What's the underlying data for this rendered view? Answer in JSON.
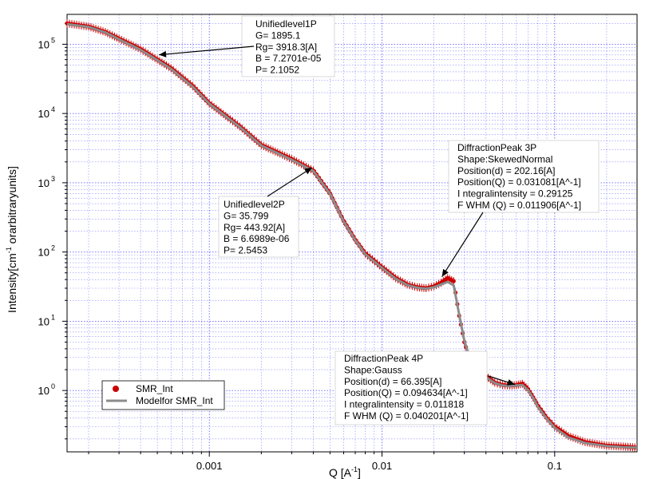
{
  "chart_data": {
    "type": "scatter",
    "xlabel": "Q [A",
    "xlabel_sup": "-1",
    "xlabel_end": "]",
    "ylabel": "Intensity[cm",
    "ylabel_sup": "-1",
    "ylabel_end": " orarbitraryunits]",
    "x_scale": "log",
    "y_scale": "log",
    "xlim": [
      0.00015,
      0.3
    ],
    "ylim": [
      0.13,
      270000
    ],
    "grid": true,
    "x_ticks": [
      {
        "value": 0.001,
        "label": "0.001"
      },
      {
        "value": 0.01,
        "label": "0.01"
      },
      {
        "value": 0.1,
        "label": "0.1"
      }
    ],
    "y_ticks": [
      {
        "value": 1,
        "base": "10",
        "exp": "0"
      },
      {
        "value": 10,
        "base": "10",
        "exp": "1"
      },
      {
        "value": 100,
        "base": "10",
        "exp": "2"
      },
      {
        "value": 1000,
        "base": "10",
        "exp": "3"
      },
      {
        "value": 10000,
        "base": "10",
        "exp": "4"
      },
      {
        "value": 100000,
        "base": "10",
        "exp": "5"
      }
    ],
    "legend": {
      "placement": "bottom-left",
      "entries": [
        "SMR_Int",
        "Modelfor SMR_Int"
      ]
    },
    "colors": {
      "data": "#cc0000",
      "model": "#8c8c8c",
      "grid": "#5555ff"
    },
    "series": [
      {
        "name": "SMR_Int",
        "x": [
          0.00015,
          0.0002,
          0.00025,
          0.0003,
          0.0004,
          0.0005,
          0.0006,
          0.0008,
          0.001,
          0.0015,
          0.002,
          0.003,
          0.004,
          0.005,
          0.006,
          0.007,
          0.008,
          0.01,
          0.012,
          0.014,
          0.016,
          0.018,
          0.02,
          0.022,
          0.024,
          0.026,
          0.028,
          0.03,
          0.032,
          0.035,
          0.04,
          0.045,
          0.05,
          0.055,
          0.06,
          0.065,
          0.07,
          0.075,
          0.08,
          0.09,
          0.1,
          0.12,
          0.15,
          0.2,
          0.25,
          0.3
        ],
        "y": [
          200000,
          180000,
          150000,
          120000,
          85000,
          60000,
          45000,
          25000,
          14000,
          6500,
          3500,
          2200,
          1500,
          700,
          280,
          150,
          95,
          60,
          42,
          34,
          31,
          30,
          32,
          36,
          42,
          38,
          12,
          5,
          3,
          2.3,
          1.6,
          1.3,
          1.2,
          1.18,
          1.2,
          1.25,
          1.05,
          0.8,
          0.6,
          0.4,
          0.3,
          0.22,
          0.18,
          0.16,
          0.155,
          0.15
        ]
      },
      {
        "name": "Modelfor SMR_Int",
        "x": [
          0.00015,
          0.0002,
          0.00025,
          0.0003,
          0.0004,
          0.0005,
          0.0006,
          0.0008,
          0.001,
          0.0015,
          0.002,
          0.003,
          0.004,
          0.005,
          0.006,
          0.007,
          0.008,
          0.01,
          0.012,
          0.014,
          0.016,
          0.018,
          0.02,
          0.022,
          0.024,
          0.026,
          0.028,
          0.03,
          0.032,
          0.035,
          0.04,
          0.045,
          0.05,
          0.055,
          0.06,
          0.065,
          0.07,
          0.075,
          0.08,
          0.09,
          0.1,
          0.12,
          0.15,
          0.2,
          0.25,
          0.3
        ],
        "y": [
          195000,
          178000,
          148000,
          118000,
          83000,
          59000,
          44000,
          24500,
          13800,
          6400,
          3450,
          2150,
          1480,
          690,
          275,
          148,
          93,
          59,
          41,
          33.5,
          30.5,
          29.5,
          31,
          34,
          37,
          33,
          12.5,
          5.2,
          3.1,
          2.25,
          1.55,
          1.28,
          1.18,
          1.16,
          1.18,
          1.2,
          1.02,
          0.78,
          0.58,
          0.39,
          0.29,
          0.21,
          0.175,
          0.158,
          0.152,
          0.15
        ]
      }
    ],
    "annotations": [
      {
        "lines": [
          "Unifiedlevel1P",
          "G= 1895.1",
          "Rg= 3918.3[A]",
          "B = 7.2701e-05",
          "P= 2.1052"
        ],
        "x": 0.0005,
        "y": 70000
      },
      {
        "lines": [
          "Unifiedlevel2P",
          "G= 35.799",
          "Rg= 443.92[A]",
          "B = 6.6989e-06",
          "P= 2.5453"
        ],
        "x": 0.004,
        "y": 1700
      },
      {
        "lines": [
          "DiffractionPeak 3P",
          "Shape:SkewedNormal",
          "Position(d) = 202.16[A]",
          "Position(Q) = 0.031081[A^-1]",
          "I  ntegralintensity = 0.29125",
          "F  WHM (Q) = 0.011906[A^-1]"
        ],
        "x": 0.022,
        "y": 42
      },
      {
        "lines": [
          "DiffractionPeak 4P",
          "Shape:Gauss",
          "Position(d) = 66.395[A]",
          "Position(Q) = 0.094634[A^-1]",
          "I  ntegralintensity = 0.011818",
          "F  WHM (Q) = 0.040201[A^-1]"
        ],
        "x": 0.06,
        "y": 1.2
      }
    ]
  }
}
